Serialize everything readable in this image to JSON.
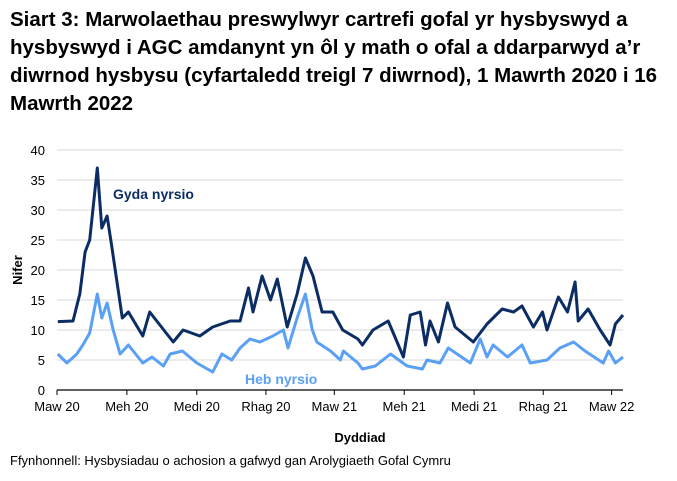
{
  "chart_data": {
    "type": "line",
    "title": "Siart 3: Marwolaethau preswylwyr cartrefi gofal yr hysbyswyd a hysbyswyd i AGC amdanynt yn ôl y math o ofal a ddarparwyd a’r diwrnod hysbysu (cyfartaledd treigl 7 diwrnod), 1 Mawrth 2020 i 16 Mawrth 2022",
    "xlabel": "Dyddiad",
    "ylabel": "Nifer",
    "source": "Ffynhonnell: Hysbysiadau o achosion a gafwyd gan Arolygiaeth Gofal Cymru",
    "xlim": [
      "2020-03-01",
      "2022-03-16"
    ],
    "ylim": [
      0,
      40
    ],
    "yticks": [
      0,
      5,
      10,
      15,
      20,
      25,
      30,
      35,
      40
    ],
    "xticks": [
      {
        "date": "2020-03-01",
        "label": "Maw 20"
      },
      {
        "date": "2020-06-01",
        "label": "Meh 20"
      },
      {
        "date": "2020-09-01",
        "label": "Medi 20"
      },
      {
        "date": "2020-12-01",
        "label": "Rhag 20"
      },
      {
        "date": "2021-03-01",
        "label": "Maw 21"
      },
      {
        "date": "2021-06-01",
        "label": "Meh 21"
      },
      {
        "date": "2021-09-01",
        "label": "Medi 21"
      },
      {
        "date": "2021-12-01",
        "label": "Rhag 21"
      },
      {
        "date": "2022-03-01",
        "label": "Maw 22"
      }
    ],
    "grid": "horizontal",
    "series": [
      {
        "name": "Gyda nyrsio",
        "color": "#0c2d64",
        "points": [
          [
            "2020-03-02",
            11.4
          ],
          [
            "2020-03-22",
            11.5
          ],
          [
            "2020-03-31",
            16
          ],
          [
            "2020-04-07",
            23
          ],
          [
            "2020-04-13",
            25
          ],
          [
            "2020-04-23",
            37
          ],
          [
            "2020-04-29",
            27
          ],
          [
            "2020-05-06",
            29
          ],
          [
            "2020-05-12",
            24
          ],
          [
            "2020-05-19",
            18
          ],
          [
            "2020-05-26",
            12
          ],
          [
            "2020-06-03",
            13
          ],
          [
            "2020-06-22",
            9
          ],
          [
            "2020-07-01",
            13
          ],
          [
            "2020-08-01",
            8
          ],
          [
            "2020-08-14",
            10
          ],
          [
            "2020-09-05",
            9
          ],
          [
            "2020-09-22",
            10.5
          ],
          [
            "2020-10-15",
            11.5
          ],
          [
            "2020-10-28",
            11.5
          ],
          [
            "2020-11-08",
            17
          ],
          [
            "2020-11-14",
            13
          ],
          [
            "2020-11-26",
            19
          ],
          [
            "2020-12-07",
            15
          ],
          [
            "2020-12-16",
            18.5
          ],
          [
            "2020-12-29",
            10.5
          ],
          [
            "2021-01-11",
            16
          ],
          [
            "2021-01-22",
            22
          ],
          [
            "2021-02-01",
            19
          ],
          [
            "2021-02-13",
            13
          ],
          [
            "2021-02-27",
            13
          ],
          [
            "2021-03-12",
            10
          ],
          [
            "2021-04-01",
            8.5
          ],
          [
            "2021-04-07",
            7.5
          ],
          [
            "2021-04-21",
            10
          ],
          [
            "2021-05-11",
            11.5
          ],
          [
            "2021-05-31",
            5.5
          ],
          [
            "2021-06-09",
            12.5
          ],
          [
            "2021-06-22",
            13
          ],
          [
            "2021-06-29",
            7.5
          ],
          [
            "2021-07-05",
            11.5
          ],
          [
            "2021-07-16",
            8
          ],
          [
            "2021-07-28",
            14.5
          ],
          [
            "2021-08-07",
            10.5
          ],
          [
            "2021-08-31",
            8
          ],
          [
            "2021-09-18",
            11
          ],
          [
            "2021-10-08",
            13.5
          ],
          [
            "2021-10-23",
            13
          ],
          [
            "2021-11-03",
            14
          ],
          [
            "2021-11-18",
            10.5
          ],
          [
            "2021-11-30",
            13
          ],
          [
            "2021-12-06",
            10
          ],
          [
            "2021-12-21",
            15.5
          ],
          [
            "2022-01-02",
            13
          ],
          [
            "2022-01-12",
            18
          ],
          [
            "2022-01-16",
            11.5
          ],
          [
            "2022-01-29",
            13.5
          ],
          [
            "2022-02-14",
            10
          ],
          [
            "2022-02-27",
            7.5
          ],
          [
            "2022-03-06",
            11
          ],
          [
            "2022-03-16",
            12.5
          ]
        ]
      },
      {
        "name": "Heb nyrsio",
        "color": "#5aa0f5",
        "points": [
          [
            "2020-03-02",
            6
          ],
          [
            "2020-03-14",
            4.5
          ],
          [
            "2020-03-27",
            6
          ],
          [
            "2020-04-04",
            7.5
          ],
          [
            "2020-04-13",
            9.5
          ],
          [
            "2020-04-23",
            16
          ],
          [
            "2020-04-29",
            12
          ],
          [
            "2020-05-06",
            14.5
          ],
          [
            "2020-05-14",
            10
          ],
          [
            "2020-05-23",
            6
          ],
          [
            "2020-06-03",
            7.5
          ],
          [
            "2020-06-22",
            4.5
          ],
          [
            "2020-07-04",
            5.5
          ],
          [
            "2020-07-19",
            4
          ],
          [
            "2020-07-28",
            6
          ],
          [
            "2020-08-13",
            6.5
          ],
          [
            "2020-09-01",
            4.5
          ],
          [
            "2020-09-22",
            3
          ],
          [
            "2020-10-04",
            6
          ],
          [
            "2020-10-17",
            5
          ],
          [
            "2020-10-28",
            7
          ],
          [
            "2020-11-10",
            8.5
          ],
          [
            "2020-11-23",
            8
          ],
          [
            "2020-12-10",
            9
          ],
          [
            "2020-12-24",
            10
          ],
          [
            "2020-12-30",
            7
          ],
          [
            "2021-01-11",
            12
          ],
          [
            "2021-01-22",
            16
          ],
          [
            "2021-01-31",
            10
          ],
          [
            "2021-02-06",
            8
          ],
          [
            "2021-02-24",
            6.5
          ],
          [
            "2021-03-09",
            5
          ],
          [
            "2021-03-13",
            6.5
          ],
          [
            "2021-04-01",
            4.5
          ],
          [
            "2021-04-07",
            3.5
          ],
          [
            "2021-04-24",
            4
          ],
          [
            "2021-05-14",
            6
          ],
          [
            "2021-06-05",
            4
          ],
          [
            "2021-06-25",
            3.5
          ],
          [
            "2021-07-01",
            5
          ],
          [
            "2021-07-18",
            4.5
          ],
          [
            "2021-07-29",
            7
          ],
          [
            "2021-08-27",
            4.5
          ],
          [
            "2021-09-09",
            8.5
          ],
          [
            "2021-09-18",
            5.5
          ],
          [
            "2021-09-26",
            7.5
          ],
          [
            "2021-10-15",
            5.5
          ],
          [
            "2021-11-03",
            7.5
          ],
          [
            "2021-11-14",
            4.5
          ],
          [
            "2021-12-06",
            5
          ],
          [
            "2021-12-23",
            7
          ],
          [
            "2022-01-10",
            8
          ],
          [
            "2022-01-25",
            6.5
          ],
          [
            "2022-02-18",
            4.5
          ],
          [
            "2022-02-25",
            6.5
          ],
          [
            "2022-03-06",
            4.5
          ],
          [
            "2022-03-16",
            5.5
          ]
        ]
      }
    ]
  }
}
